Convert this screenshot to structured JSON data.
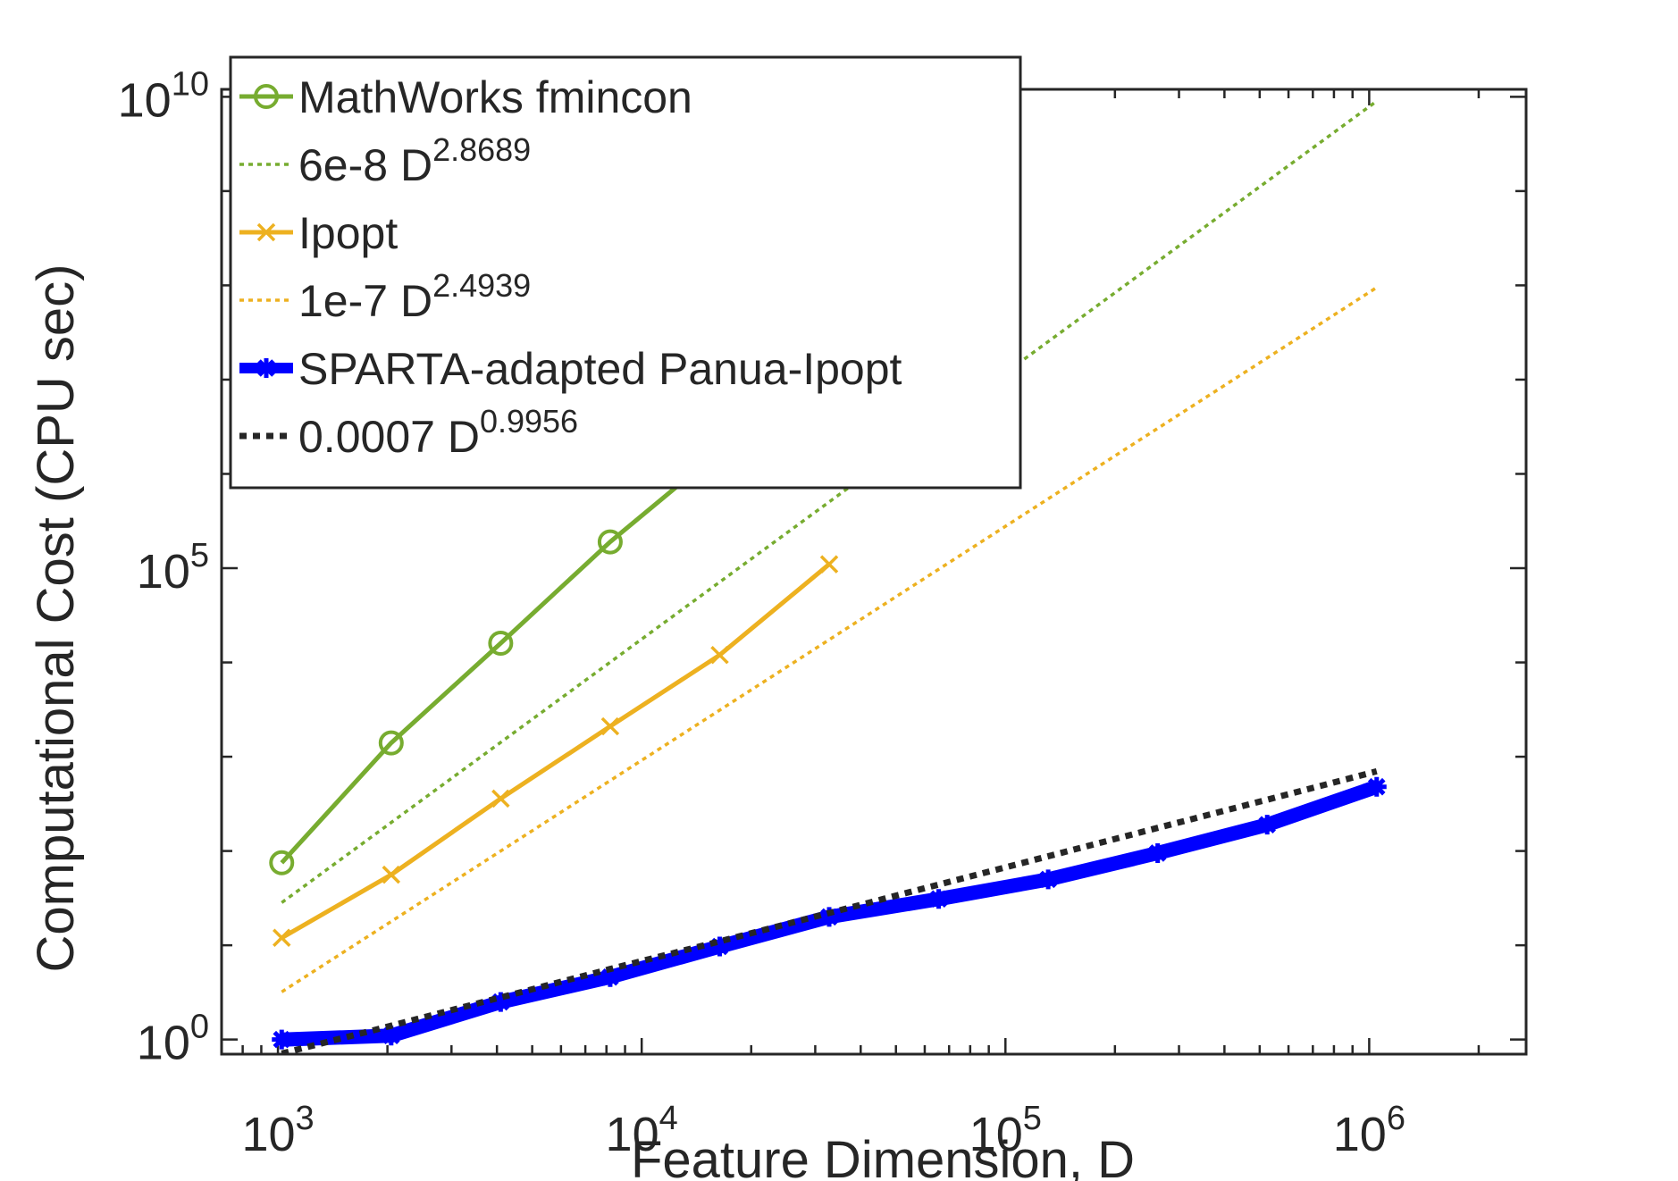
{
  "chart_data": {
    "type": "line",
    "title": "",
    "xlabel": "Feature Dimension, D",
    "ylabel": "Computational Cost (CPU sec)",
    "x_scale": "log",
    "y_scale": "log",
    "xlim": [
      700,
      2700000
    ],
    "ylim": [
      0.7,
      12000000000
    ],
    "x_ticks": [
      1000,
      10000,
      100000,
      1000000
    ],
    "x_tick_labels": [
      {
        "base": "10",
        "exp": "3"
      },
      {
        "base": "10",
        "exp": "4"
      },
      {
        "base": "10",
        "exp": "5"
      },
      {
        "base": "10",
        "exp": "6"
      }
    ],
    "y_ticks": [
      1,
      100000,
      10000000000
    ],
    "y_tick_labels": [
      {
        "base": "10",
        "exp": "0"
      },
      {
        "base": "10",
        "exp": "5"
      },
      {
        "base": "10",
        "exp": "10"
      }
    ],
    "grid": false,
    "legend_position": "top-left",
    "series": [
      {
        "name": "MathWorks fmincon",
        "label_base": "MathWorks fmincon",
        "label_exp": "",
        "style": "solid-circle",
        "color": "#77AC30",
        "x": [
          1024,
          2048,
          4096,
          8192,
          16384,
          32768
        ],
        "y": [
          75,
          1400,
          16000,
          190000,
          1750000,
          22000000
        ]
      },
      {
        "name": "6e-8 D^2.8689",
        "label_base": "6e-8 D",
        "label_exp": "2.8689",
        "style": "dotted",
        "color": "#77AC30",
        "x": [
          1024,
          1048576
        ],
        "y": [
          28.3,
          9000000000
        ]
      },
      {
        "name": "Ipopt",
        "label_base": "Ipopt",
        "label_exp": "",
        "style": "solid-x",
        "color": "#EDB120",
        "x": [
          1024,
          2048,
          4096,
          8192,
          16384,
          32768
        ],
        "y": [
          12,
          56,
          360,
          2100,
          12000,
          110000
        ]
      },
      {
        "name": "1e-7 D^2.4939",
        "label_base": "1e-7 D",
        "label_exp": "2.4939",
        "style": "dotted",
        "color": "#EDB120",
        "x": [
          1024,
          1048576
        ],
        "y": [
          3.2,
          95000000
        ]
      },
      {
        "name": "SPARTA-adapted Panua-Ipopt",
        "label_base": "SPARTA-adapted Panua-Ipopt",
        "label_exp": "",
        "style": "thick-solid-star",
        "color": "#0000FF",
        "x": [
          1024,
          2048,
          4096,
          8192,
          16384,
          32768,
          65536,
          131072,
          262144,
          524288,
          1048576
        ],
        "y": [
          1.0,
          1.1,
          2.5,
          4.6,
          9.7,
          20,
          31,
          50,
          95,
          190,
          480
        ]
      },
      {
        "name": "0.0007 D^0.9956",
        "label_base": "0.0007 D",
        "label_exp": "0.9956",
        "style": "thick-dotted",
        "color": "#262626",
        "x": [
          1024,
          2048,
          4096,
          8192,
          16384,
          32768,
          65536,
          131072,
          262144,
          524288,
          1048576
        ],
        "y": [
          0.71,
          1.4,
          2.8,
          5.6,
          11,
          22,
          44,
          88,
          176,
          350,
          700
        ]
      }
    ]
  }
}
